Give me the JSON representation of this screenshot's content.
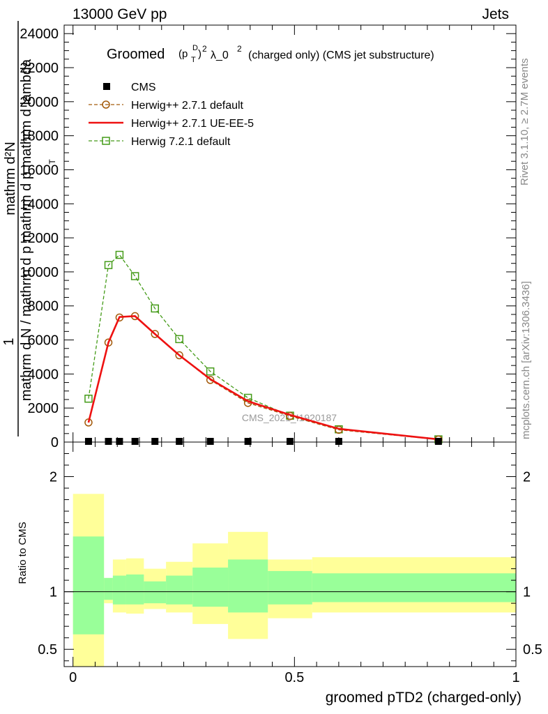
{
  "header": {
    "energy_label": "13000 GeV pp",
    "process_label": "Jets"
  },
  "side_labels": {
    "rivet": "Rivet 3.1.10, ≥ 2.7M events",
    "mcplots": "mcplots.cern.ch [arXiv:1306.3436]"
  },
  "chart_data": [
    {
      "type": "line",
      "title": "Groomed (p_T^D)^2 λ_0^2  (charged only) (CMS jet substructure)",
      "title_parts": {
        "prefix": "Groomed",
        "sup_d": "D",
        "sub_t": "T",
        "sq": "2",
        "lambda": "λ_0",
        "sq2": "2",
        "suffix": "(charged only) (CMS jet substructure)"
      },
      "ylabel": "1 / mathrm d N / mathrm d p_T mathrm d^2N / mathrm d p_T mathrm d lambda",
      "ylabel_parts": {
        "numerator": "mathrm d²N",
        "fraction_top": "1",
        "denominator": "mathrm d N / mathrm d p mathrm d p  mathrm d lambda",
        "sub": "T"
      },
      "ylim": [
        0,
        24500
      ],
      "xlim": [
        -0.02,
        1.0
      ],
      "y_ticks": [
        0,
        2000,
        4000,
        6000,
        8000,
        10000,
        12000,
        14000,
        16000,
        18000,
        20000,
        22000,
        24000
      ],
      "y_tick_labels": [
        "0",
        "2000",
        "4000",
        "6000",
        "8000",
        "10000",
        "12000",
        "14000",
        "16000",
        "18000",
        "20000",
        "22000",
        "24000"
      ],
      "watermark": "CMS_2021_I1920187",
      "legend_position": "top-left",
      "series": [
        {
          "name": "CMS",
          "color": "#000000",
          "marker": "filled-square",
          "x": [
            0.035,
            0.08,
            0.105,
            0.14,
            0.185,
            0.24,
            0.31,
            0.395,
            0.49,
            0.6,
            0.825
          ],
          "y": [
            0,
            0,
            0,
            0,
            0,
            0,
            0,
            0,
            0,
            0,
            0
          ]
        },
        {
          "name": "Herwig++ 2.7.1 default",
          "color": "#a35a0a",
          "marker": "open-circle",
          "dashed": true,
          "x": [
            0.035,
            0.08,
            0.105,
            0.14,
            0.185,
            0.24,
            0.31,
            0.395,
            0.49,
            0.6,
            0.825
          ],
          "y": [
            1150,
            5850,
            7320,
            7400,
            6350,
            5100,
            3650,
            2300,
            1530,
            720,
            150
          ]
        },
        {
          "name": "Herwig++ 2.7.1 UE-EE-5",
          "color": "#ee1111",
          "marker": "none",
          "dashed": false,
          "x": [
            0.035,
            0.08,
            0.105,
            0.14,
            0.185,
            0.24,
            0.31,
            0.395,
            0.49,
            0.6,
            0.825
          ],
          "y": [
            1150,
            5850,
            7350,
            7400,
            6350,
            5100,
            3700,
            2400,
            1600,
            780,
            160
          ]
        },
        {
          "name": "Herwig 7.2.1 default",
          "color": "#449b18",
          "marker": "open-square",
          "dashed": true,
          "x": [
            0.035,
            0.08,
            0.105,
            0.14,
            0.185,
            0.24,
            0.31,
            0.395,
            0.49,
            0.6,
            0.825
          ],
          "y": [
            2550,
            10400,
            11000,
            9750,
            7850,
            6050,
            4150,
            2600,
            1550,
            750,
            160
          ]
        }
      ]
    },
    {
      "type": "area",
      "ylabel": "Ratio to CMS",
      "xlabel": "groomed pTD2 (charged-only)",
      "xlim": [
        -0.02,
        1.0
      ],
      "ylim": [
        0.35,
        2.3
      ],
      "x_ticks": [
        0,
        0.5,
        1
      ],
      "x_tick_labels": [
        "0",
        "0.5",
        "1"
      ],
      "y_ticks": [
        0.5,
        1,
        2
      ],
      "y_tick_labels": [
        "0.5",
        "1",
        "2"
      ],
      "reference_line": 1,
      "bins": [
        0,
        0.07,
        0.09,
        0.12,
        0.16,
        0.21,
        0.27,
        0.35,
        0.44,
        0.54,
        0.66,
        1.0
      ],
      "band_total": {
        "name": "stat+syst",
        "color": "#ffff99",
        "lower": [
          0.35,
          0.9,
          0.82,
          0.81,
          0.85,
          0.82,
          0.72,
          0.59,
          0.77,
          0.82,
          0.82
        ],
        "upper": [
          1.85,
          1.12,
          1.28,
          1.29,
          1.2,
          1.26,
          1.42,
          1.52,
          1.28,
          1.3,
          1.3
        ]
      },
      "band_stat": {
        "name": "stat",
        "color": "#99ff99",
        "lower": [
          0.63,
          0.93,
          0.89,
          0.89,
          0.9,
          0.89,
          0.87,
          0.82,
          0.89,
          0.91,
          0.91
        ],
        "upper": [
          1.48,
          1.12,
          1.14,
          1.15,
          1.09,
          1.14,
          1.21,
          1.28,
          1.18,
          1.16,
          1.16
        ]
      }
    }
  ]
}
